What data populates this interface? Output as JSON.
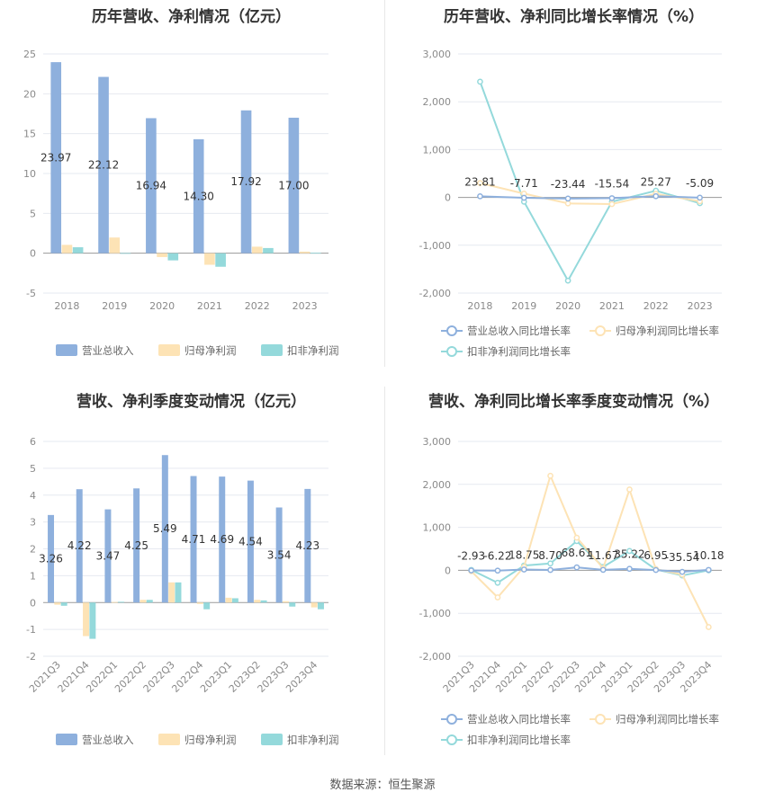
{
  "source_text": "数据来源：恒生聚源",
  "chart_data": [
    {
      "id": "annual-revenue-profit",
      "type": "bar",
      "title": "历年营收、净利情况（亿元）",
      "categories": [
        "2018",
        "2019",
        "2020",
        "2021",
        "2022",
        "2023"
      ],
      "ylim": [
        -5,
        25
      ],
      "yticks": [
        -5,
        0,
        5,
        10,
        15,
        20,
        25
      ],
      "grid": true,
      "legend_position": "bottom",
      "series": [
        {
          "name": "营业总收入",
          "color": "#8eb0dd",
          "values": [
            23.97,
            22.12,
            16.94,
            14.3,
            17.92,
            17.0
          ],
          "labels": [
            "23.97",
            "22.12",
            "16.94",
            "14.30",
            "17.92",
            "17.00"
          ]
        },
        {
          "name": "归母净利润",
          "color": "#fde3b5",
          "values": [
            1.05,
            1.97,
            -0.48,
            -1.45,
            0.82,
            0.2
          ]
        },
        {
          "name": "扣非净利润",
          "color": "#94d9db",
          "values": [
            0.75,
            0.02,
            -0.9,
            -1.7,
            0.65,
            0.05
          ]
        }
      ]
    },
    {
      "id": "annual-yoy-growth",
      "type": "line",
      "title": "历年营收、净利同比增长率情况（%）",
      "categories": [
        "2018",
        "2019",
        "2020",
        "2021",
        "2022",
        "2023"
      ],
      "ylim": [
        -2000,
        3000
      ],
      "yticks": [
        -2000,
        -1000,
        0,
        1000,
        2000,
        3000
      ],
      "ytick_labels": [
        "-2,000",
        "-1,000",
        "0",
        "1,000",
        "2,000",
        "3,000"
      ],
      "grid": true,
      "legend_position": "bottom",
      "series": [
        {
          "name": "营业总收入同比增长率",
          "color": "#8eb0dd",
          "values": [
            23.81,
            -7.71,
            -23.44,
            -15.54,
            25.27,
            -5.09
          ],
          "labels": [
            "23.81",
            "-7.71",
            "-23.44",
            "-15.54",
            "25.27",
            "-5.09"
          ]
        },
        {
          "name": "归母净利润同比增长率",
          "color": "#fde3b5",
          "values": [
            300,
            80,
            -125,
            -140,
            75,
            -80
          ]
        },
        {
          "name": "扣非净利润同比增长率",
          "color": "#94d9db",
          "values": [
            2420,
            -90,
            -1740,
            -90,
            140,
            -120
          ]
        }
      ]
    },
    {
      "id": "quarterly-revenue-profit",
      "type": "bar",
      "title": "营收、净利季度变动情况（亿元）",
      "categories": [
        "2021Q3",
        "2021Q4",
        "2022Q1",
        "2022Q2",
        "2022Q3",
        "2022Q4",
        "2023Q1",
        "2023Q2",
        "2023Q3",
        "2023Q4"
      ],
      "ylim": [
        -2,
        6
      ],
      "yticks": [
        -2,
        -1,
        0,
        1,
        2,
        3,
        4,
        5,
        6
      ],
      "grid": true,
      "legend_position": "bottom",
      "series": [
        {
          "name": "营业总收入",
          "color": "#8eb0dd",
          "values": [
            3.26,
            4.22,
            3.47,
            4.25,
            5.49,
            4.71,
            4.69,
            4.54,
            3.54,
            4.23
          ],
          "labels": [
            "3.26",
            "4.22",
            "3.47",
            "4.25",
            "5.49",
            "4.71",
            "4.69",
            "4.54",
            "3.54",
            "4.23"
          ]
        },
        {
          "name": "归母净利润",
          "color": "#fde3b5",
          "values": [
            -0.08,
            -1.25,
            0.02,
            0.1,
            0.75,
            -0.05,
            0.18,
            0.1,
            0.05,
            -0.18
          ]
        },
        {
          "name": "扣非净利润",
          "color": "#94d9db",
          "values": [
            -0.12,
            -1.35,
            0.03,
            0.1,
            0.75,
            -0.25,
            0.16,
            0.08,
            -0.15,
            -0.25
          ]
        }
      ]
    },
    {
      "id": "quarterly-yoy-growth",
      "type": "line",
      "title": "营收、净利同比增长率季度变动情况（%）",
      "categories": [
        "2021Q3",
        "2021Q4",
        "2022Q1",
        "2022Q2",
        "2022Q3",
        "2022Q4",
        "2023Q1",
        "2023Q2",
        "2023Q3",
        "2023Q4"
      ],
      "ylim": [
        -2000,
        3000
      ],
      "yticks": [
        -2000,
        -1000,
        0,
        1000,
        2000,
        3000
      ],
      "ytick_labels": [
        "-2,000",
        "-1,000",
        "0",
        "1,000",
        "2,000",
        "3,000"
      ],
      "grid": true,
      "legend_position": "bottom",
      "series": [
        {
          "name": "营业总收入同比增长率",
          "color": "#8eb0dd",
          "values": [
            -2.93,
            -6.22,
            18.75,
            8.7,
            68.61,
            11.67,
            35.22,
            6.95,
            -35.54,
            10.18
          ],
          "labels": [
            "-2.93",
            "-6.22",
            "18.75",
            "8.70",
            "68.61",
            "11.67",
            "35.22",
            "6.95",
            "-35.54",
            "10.18"
          ]
        },
        {
          "name": "归母净利润同比增长率",
          "color": "#fde3b5",
          "values": [
            -20,
            -630,
            80,
            2200,
            760,
            50,
            1880,
            30,
            -100,
            -1320
          ]
        },
        {
          "name": "扣非净利润同比增长率",
          "color": "#94d9db",
          "values": [
            10,
            -290,
            110,
            160,
            680,
            80,
            450,
            20,
            -120,
            0
          ]
        }
      ]
    }
  ]
}
